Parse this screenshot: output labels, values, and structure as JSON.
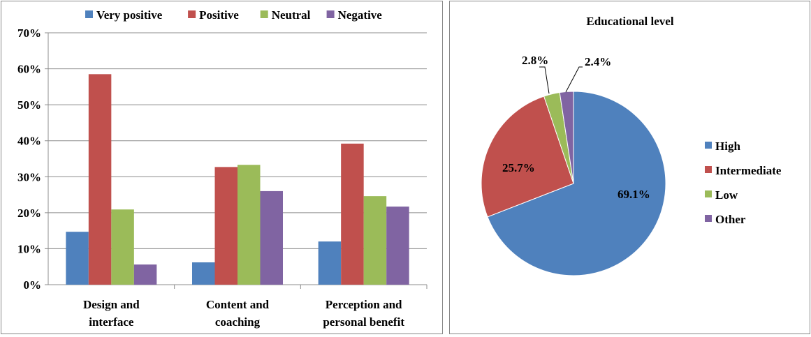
{
  "chart_data": [
    {
      "type": "bar",
      "title": "",
      "xlabel": "",
      "ylabel": "",
      "ylim": [
        0,
        70
      ],
      "y_ticks": [
        "0%",
        "10%",
        "20%",
        "30%",
        "40%",
        "50%",
        "60%",
        "70%"
      ],
      "categories": [
        [
          "Design and",
          "interface"
        ],
        [
          "Content and",
          "coaching"
        ],
        [
          "Perception and",
          "personal benefit"
        ]
      ],
      "series": [
        {
          "name": "Very positive",
          "color": "#4F81BD",
          "values": [
            14.7,
            6.2,
            12.0
          ]
        },
        {
          "name": "Positive",
          "color": "#C0504D",
          "values": [
            58.5,
            32.7,
            39.2
          ]
        },
        {
          "name": "Neutral",
          "color": "#9BBB59",
          "values": [
            20.9,
            33.3,
            24.6
          ]
        },
        {
          "name": "Negative",
          "color": "#8064A2",
          "values": [
            5.6,
            26.0,
            21.7
          ]
        }
      ],
      "legend": "top",
      "grid": true
    },
    {
      "type": "pie",
      "title": "Educational level",
      "legend": "right",
      "slices": [
        {
          "name": "High",
          "value": 69.1,
          "label": "69.1%",
          "color": "#4F81BD"
        },
        {
          "name": "Intermediate",
          "value": 25.7,
          "label": "25.7%",
          "color": "#C0504D"
        },
        {
          "name": "Low",
          "value": 2.8,
          "label": "2.8%",
          "color": "#9BBB59"
        },
        {
          "name": "Other",
          "value": 2.4,
          "label": "2.4%",
          "color": "#8064A2"
        }
      ]
    }
  ]
}
